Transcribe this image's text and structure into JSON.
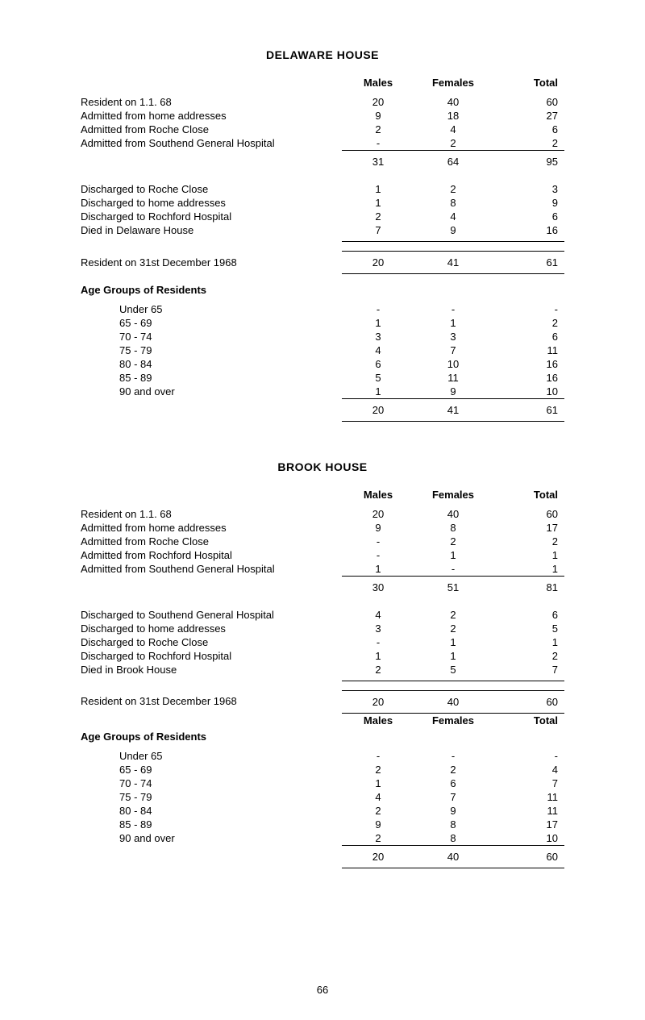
{
  "page_number": "66",
  "sections": [
    {
      "title": "DELAWARE HOUSE",
      "headers": {
        "males": "Males",
        "females": "Females",
        "total": "Total"
      },
      "groups": [
        {
          "rows": [
            {
              "label": "Resident on 1.1. 68",
              "m": "20",
              "f": "40",
              "t": "60"
            },
            {
              "label": "Admitted from home addresses",
              "m": "9",
              "f": "18",
              "t": "27"
            },
            {
              "label": "Admitted from Roche Close",
              "m": "2",
              "f": "4",
              "t": "6"
            },
            {
              "label": "Admitted from Southend General Hospital",
              "m": "-",
              "f": "2",
              "t": "2"
            }
          ],
          "subtotal": {
            "m": "31",
            "f": "64",
            "t": "95"
          }
        },
        {
          "rows": [
            {
              "label": "Discharged to Roche Close",
              "m": "1",
              "f": "2",
              "t": "3"
            },
            {
              "label": "Discharged to home addresses",
              "m": "1",
              "f": "8",
              "t": "9"
            },
            {
              "label": "Discharged to Rochford Hospital",
              "m": "2",
              "f": "4",
              "t": "6"
            },
            {
              "label": "Died in Delaware House",
              "m": "7",
              "f": "9",
              "t": "16"
            }
          ]
        },
        {
          "rows": [
            {
              "label": "Resident on 31st December 1968",
              "m": "20",
              "f": "41",
              "t": "61"
            }
          ],
          "boxed": true
        }
      ],
      "age_section": {
        "title": "Age Groups of Residents",
        "rows": [
          {
            "label": "Under 65",
            "m": "-",
            "f": "-",
            "t": "-"
          },
          {
            "label": "65 - 69",
            "m": "1",
            "f": "1",
            "t": "2"
          },
          {
            "label": "70 - 74",
            "m": "3",
            "f": "3",
            "t": "6"
          },
          {
            "label": "75 - 79",
            "m": "4",
            "f": "7",
            "t": "11"
          },
          {
            "label": "80 - 84",
            "m": "6",
            "f": "10",
            "t": "16"
          },
          {
            "label": "85 - 89",
            "m": "5",
            "f": "11",
            "t": "16"
          },
          {
            "label": "90 and over",
            "m": "1",
            "f": "9",
            "t": "10"
          }
        ],
        "subtotal": {
          "m": "20",
          "f": "41",
          "t": "61"
        }
      }
    },
    {
      "title": "BROOK HOUSE",
      "headers": {
        "males": "Males",
        "females": "Females",
        "total": "Total"
      },
      "groups": [
        {
          "rows": [
            {
              "label": "Resident on 1.1. 68",
              "m": "20",
              "f": "40",
              "t": "60"
            },
            {
              "label": "Admitted from home addresses",
              "m": "9",
              "f": "8",
              "t": "17"
            },
            {
              "label": "Admitted from Roche Close",
              "m": "-",
              "f": "2",
              "t": "2"
            },
            {
              "label": "Admitted from Rochford Hospital",
              "m": "-",
              "f": "1",
              "t": "1"
            },
            {
              "label": "Admitted from Southend General Hospital",
              "m": "1",
              "f": "-",
              "t": "1"
            }
          ],
          "subtotal": {
            "m": "30",
            "f": "51",
            "t": "81"
          }
        },
        {
          "rows": [
            {
              "label": "Discharged to Southend General Hospital",
              "m": "4",
              "f": "2",
              "t": "6"
            },
            {
              "label": "Discharged to home addresses",
              "m": "3",
              "f": "2",
              "t": "5"
            },
            {
              "label": "Discharged to Roche Close",
              "m": "-",
              "f": "1",
              "t": "1"
            },
            {
              "label": "Discharged to Rochford Hospital",
              "m": "1",
              "f": "1",
              "t": "2"
            },
            {
              "label": "Died in Brook House",
              "m": "2",
              "f": "5",
              "t": "7"
            }
          ]
        },
        {
          "rows": [
            {
              "label": "Resident on 31st December 1968",
              "m": "20",
              "f": "40",
              "t": "60"
            }
          ],
          "boxed": true
        }
      ],
      "age_section": {
        "title": "Age Groups of Residents",
        "show_headers": true,
        "rows": [
          {
            "label": "Under 65",
            "m": "-",
            "f": "-",
            "t": "-"
          },
          {
            "label": "65 - 69",
            "m": "2",
            "f": "2",
            "t": "4"
          },
          {
            "label": "70 - 74",
            "m": "1",
            "f": "6",
            "t": "7"
          },
          {
            "label": "75 - 79",
            "m": "4",
            "f": "7",
            "t": "11"
          },
          {
            "label": "80 - 84",
            "m": "2",
            "f": "9",
            "t": "11"
          },
          {
            "label": "85 - 89",
            "m": "9",
            "f": "8",
            "t": "17"
          },
          {
            "label": "90 and over",
            "m": "2",
            "f": "8",
            "t": "10"
          }
        ],
        "subtotal": {
          "m": "20",
          "f": "40",
          "t": "60"
        }
      }
    }
  ]
}
